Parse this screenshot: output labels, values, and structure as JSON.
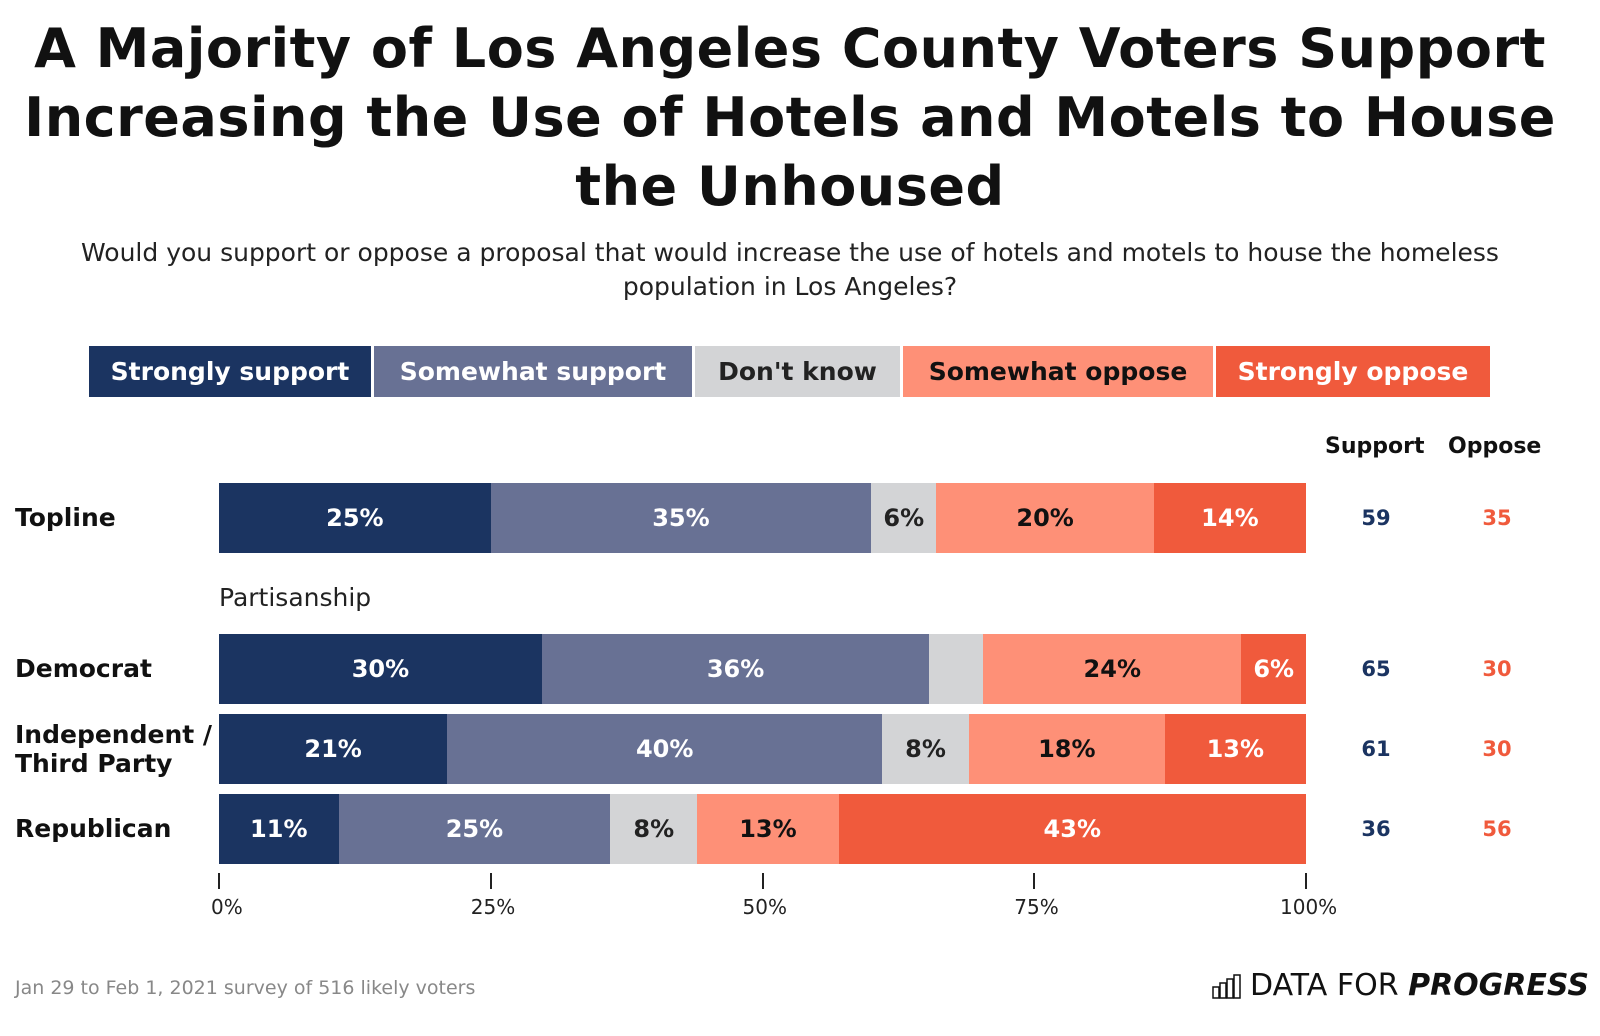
{
  "chart_data": {
    "type": "bar",
    "orientation": "horizontal",
    "stacked": true,
    "title": "A Majority of Los Angeles County Voters Support Increasing the Use of Hotels and Motels to House the Unhoused",
    "subtitle": "Would you support or oppose a proposal that would increase the use of hotels and motels to house the homeless population in Los Angeles?",
    "legend_position": "top",
    "series": [
      {
        "name": "Strongly support",
        "color": "#1b3461",
        "text_color": "#ffffff"
      },
      {
        "name": "Somewhat support",
        "color": "#687194",
        "text_color": "#ffffff"
      },
      {
        "name": "Don't know",
        "color": "#d3d4d6",
        "text_color": "#222222"
      },
      {
        "name": "Somewhat oppose",
        "color": "#fe9077",
        "text_color": "#111111"
      },
      {
        "name": "Strongly oppose",
        "color": "#f05a3c",
        "text_color": "#ffffff"
      }
    ],
    "categories": [
      "Topline",
      "Democrat",
      "Independent / Third Party",
      "Republican"
    ],
    "rows": [
      {
        "label": "Topline",
        "values": [
          25,
          35,
          6,
          20,
          14
        ],
        "labels": [
          "25%",
          "35%",
          "6%",
          "20%",
          "14%"
        ],
        "support": "59",
        "oppose": "35"
      },
      {
        "label": "Democrat",
        "values": [
          30,
          36,
          5,
          24,
          6
        ],
        "labels": [
          "30%",
          "36%",
          "",
          "24%",
          "6%"
        ],
        "support": "65",
        "oppose": "30"
      },
      {
        "label": "Independent / Third Party",
        "values": [
          21,
          40,
          8,
          18,
          13
        ],
        "labels": [
          "21%",
          "40%",
          "8%",
          "18%",
          "13%"
        ],
        "support": "61",
        "oppose": "30"
      },
      {
        "label": "Republican",
        "values": [
          11,
          25,
          8,
          13,
          43
        ],
        "labels": [
          "11%",
          "25%",
          "8%",
          "13%",
          "43%"
        ],
        "support": "36",
        "oppose": "56"
      }
    ],
    "section_label": "Partisanship",
    "support_header": "Support",
    "oppose_header": "Oppose",
    "support_color": "#1b3461",
    "oppose_color": "#f05a3c",
    "xlim": [
      0,
      100
    ],
    "xticks": [
      "0%",
      "25%",
      "50%",
      "75%",
      "100%"
    ],
    "grid": false
  },
  "footer": "Jan 29 to Feb 1, 2021 survey of 516 likely voters",
  "brand": {
    "prefix": "DATA FOR ",
    "bold": "PROGRESS",
    "icon": "bar-chart-logo-icon"
  }
}
